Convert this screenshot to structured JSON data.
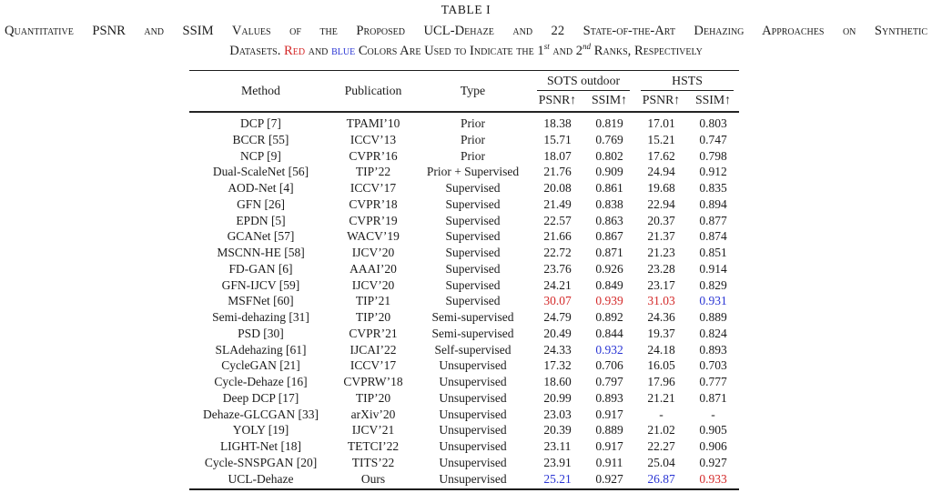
{
  "colors": {
    "rank1": "#d42a2a",
    "rank2": "#2a35d4",
    "ink": "#1b1b1b"
  },
  "title": "TABLE I",
  "caption": {
    "lines": [
      {
        "segments": [
          {
            "text": "Quantitative PSNR and SSIM Values of the Proposed UCL-Dehaze and 22 State-of-the-Art Dehazing Approaches on Synthetic"
          }
        ]
      },
      {
        "segments": [
          {
            "text": "Datasets. "
          },
          {
            "text": "Red",
            "color": "rank1"
          },
          {
            "text": " and "
          },
          {
            "text": "blue",
            "color": "rank2"
          },
          {
            "text": " Colors Are Used to Indicate the 1"
          },
          {
            "text": "st",
            "sup": true
          },
          {
            "text": " and 2"
          },
          {
            "text": "nd",
            "sup": true
          },
          {
            "text": " Ranks, Respectively"
          }
        ]
      }
    ]
  },
  "table": {
    "col_headers": [
      "Method",
      "Publication",
      "Type"
    ],
    "group_headers": [
      "SOTS outdoor",
      "HSTS"
    ],
    "metric_headers": [
      "PSNR↑",
      "SSIM↑",
      "PSNR↑",
      "SSIM↑"
    ],
    "rows": [
      {
        "method": "DCP [7]",
        "publication": "TPAMI’10",
        "type": "Prior",
        "values": [
          "18.38",
          "0.819",
          "17.01",
          "0.803"
        ],
        "colors": [
          "",
          "",
          "",
          ""
        ]
      },
      {
        "method": "BCCR [55]",
        "publication": "ICCV’13",
        "type": "Prior",
        "values": [
          "15.71",
          "0.769",
          "15.21",
          "0.747"
        ],
        "colors": [
          "",
          "",
          "",
          ""
        ]
      },
      {
        "method": "NCP [9]",
        "publication": "CVPR’16",
        "type": "Prior",
        "values": [
          "18.07",
          "0.802",
          "17.62",
          "0.798"
        ],
        "colors": [
          "",
          "",
          "",
          ""
        ]
      },
      {
        "method": "Dual-ScaleNet [56]",
        "publication": "TIP’22",
        "type": "Prior + Supervised",
        "values": [
          "21.76",
          "0.909",
          "24.94",
          "0.912"
        ],
        "colors": [
          "",
          "",
          "",
          ""
        ]
      },
      {
        "method": "AOD-Net [4]",
        "publication": "ICCV’17",
        "type": "Supervised",
        "values": [
          "20.08",
          "0.861",
          "19.68",
          "0.835"
        ],
        "colors": [
          "",
          "",
          "",
          ""
        ]
      },
      {
        "method": "GFN [26]",
        "publication": "CVPR’18",
        "type": "Supervised",
        "values": [
          "21.49",
          "0.838",
          "22.94",
          "0.894"
        ],
        "colors": [
          "",
          "",
          "",
          ""
        ]
      },
      {
        "method": "EPDN [5]",
        "publication": "CVPR’19",
        "type": "Supervised",
        "values": [
          "22.57",
          "0.863",
          "20.37",
          "0.877"
        ],
        "colors": [
          "",
          "",
          "",
          ""
        ]
      },
      {
        "method": "GCANet [57]",
        "publication": "WACV’19",
        "type": "Supervised",
        "values": [
          "21.66",
          "0.867",
          "21.37",
          "0.874"
        ],
        "colors": [
          "",
          "",
          "",
          ""
        ]
      },
      {
        "method": "MSCNN-HE [58]",
        "publication": "IJCV’20",
        "type": "Supervised",
        "values": [
          "22.72",
          "0.871",
          "21.23",
          "0.851"
        ],
        "colors": [
          "",
          "",
          "",
          ""
        ]
      },
      {
        "method": "FD-GAN [6]",
        "publication": "AAAI’20",
        "type": "Supervised",
        "values": [
          "23.76",
          "0.926",
          "23.28",
          "0.914"
        ],
        "colors": [
          "",
          "",
          "",
          ""
        ]
      },
      {
        "method": "GFN-IJCV [59]",
        "publication": "IJCV’20",
        "type": "Supervised",
        "values": [
          "24.21",
          "0.849",
          "23.17",
          "0.829"
        ],
        "colors": [
          "",
          "",
          "",
          ""
        ]
      },
      {
        "method": "MSFNet [60]",
        "publication": "TIP’21",
        "type": "Supervised",
        "values": [
          "30.07",
          "0.939",
          "31.03",
          "0.931"
        ],
        "colors": [
          "rank1",
          "rank1",
          "rank1",
          "rank2"
        ]
      },
      {
        "method": "Semi-dehazing [31]",
        "publication": "TIP’20",
        "type": "Semi-supervised",
        "values": [
          "24.79",
          "0.892",
          "24.36",
          "0.889"
        ],
        "colors": [
          "",
          "",
          "",
          ""
        ]
      },
      {
        "method": "PSD [30]",
        "publication": "CVPR’21",
        "type": "Semi-supervised",
        "values": [
          "20.49",
          "0.844",
          "19.37",
          "0.824"
        ],
        "colors": [
          "",
          "",
          "",
          ""
        ]
      },
      {
        "method": "SLAdehazing [61]",
        "publication": "IJCAI’22",
        "type": "Self-supervised",
        "values": [
          "24.33",
          "0.932",
          "24.18",
          "0.893"
        ],
        "colors": [
          "",
          "rank2",
          "",
          ""
        ]
      },
      {
        "method": "CycleGAN [21]",
        "publication": "ICCV’17",
        "type": "Unsupervised",
        "values": [
          "17.32",
          "0.706",
          "16.05",
          "0.703"
        ],
        "colors": [
          "",
          "",
          "",
          ""
        ]
      },
      {
        "method": "Cycle-Dehaze [16]",
        "publication": "CVPRW’18",
        "type": "Unsupervised",
        "values": [
          "18.60",
          "0.797",
          "17.96",
          "0.777"
        ],
        "colors": [
          "",
          "",
          "",
          ""
        ]
      },
      {
        "method": "Deep DCP [17]",
        "publication": "TIP’20",
        "type": "Unsupervised",
        "values": [
          "20.99",
          "0.893",
          "21.21",
          "0.871"
        ],
        "colors": [
          "",
          "",
          "",
          ""
        ]
      },
      {
        "method": "Dehaze-GLCGAN [33]",
        "publication": "arXiv’20",
        "type": "Unsupervised",
        "values": [
          "23.03",
          "0.917",
          "-",
          "-"
        ],
        "colors": [
          "",
          "",
          "",
          ""
        ]
      },
      {
        "method": "YOLY [19]",
        "publication": "IJCV’21",
        "type": "Unsupervised",
        "values": [
          "20.39",
          "0.889",
          "21.02",
          "0.905"
        ],
        "colors": [
          "",
          "",
          "",
          ""
        ]
      },
      {
        "method": "LIGHT-Net [18]",
        "publication": "TETCI’22",
        "type": "Unsupervised",
        "values": [
          "23.11",
          "0.917",
          "22.27",
          "0.906"
        ],
        "colors": [
          "",
          "",
          "",
          ""
        ]
      },
      {
        "method": "Cycle-SNSPGAN [20]",
        "publication": "TITS’22",
        "type": "Unsupervised",
        "values": [
          "23.91",
          "0.911",
          "25.04",
          "0.927"
        ],
        "colors": [
          "",
          "",
          "",
          ""
        ]
      },
      {
        "method": "UCL-Dehaze",
        "publication": "Ours",
        "type": "Unsupervised",
        "values": [
          "25.21",
          "0.927",
          "26.87",
          "0.933"
        ],
        "colors": [
          "rank2",
          "",
          "rank2",
          "rank1"
        ]
      }
    ]
  }
}
